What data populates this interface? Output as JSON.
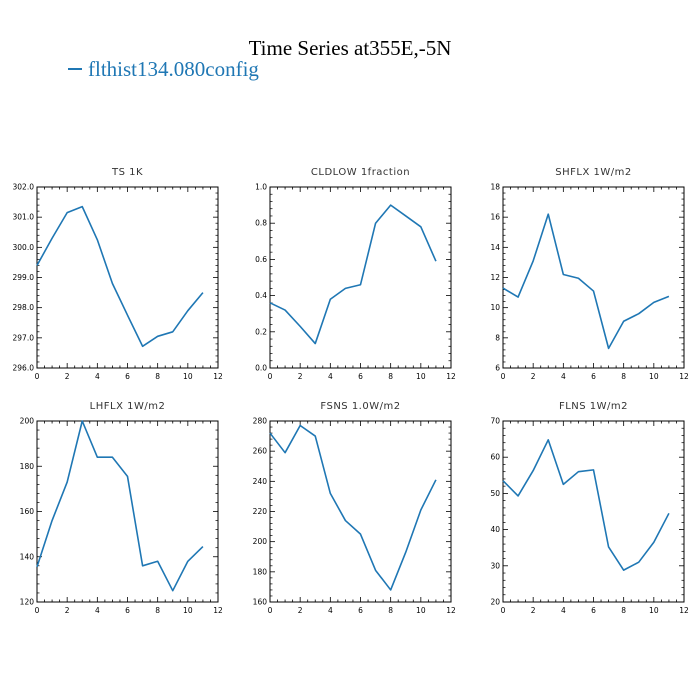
{
  "figure": {
    "title": "Time Series at355E,-5N",
    "legend_label": "flthist134.080config",
    "line_color": "#1f77b4"
  },
  "chart_data": [
    {
      "type": "line",
      "title": "TS   1K",
      "x": [
        0,
        1,
        2,
        3,
        4,
        5,
        6,
        7,
        8,
        9,
        10,
        11
      ],
      "series": [
        {
          "values": [
            299.4,
            300.3,
            301.15,
            301.35,
            300.25,
            298.8,
            297.75,
            296.72,
            297.05,
            297.2,
            297.9,
            298.5
          ]
        }
      ],
      "xlim": [
        0,
        12
      ],
      "ylim": [
        296,
        302
      ],
      "xticks": [
        0,
        2,
        4,
        6,
        8,
        10,
        12
      ],
      "yticks": [
        296.0,
        297.0,
        298.0,
        299.0,
        300.0,
        301.0,
        302.0
      ],
      "ytick_labels": [
        "296.0",
        "297.0",
        "298.0",
        "299.0",
        "300.0",
        "301.0",
        "302.0"
      ]
    },
    {
      "type": "line",
      "title": "CLDLOW   1fraction",
      "x": [
        0,
        1,
        2,
        3,
        4,
        5,
        6,
        7,
        8,
        9,
        10,
        11
      ],
      "series": [
        {
          "values": [
            0.36,
            0.32,
            0.23,
            0.135,
            0.38,
            0.44,
            0.46,
            0.8,
            0.9,
            0.84,
            0.78,
            0.59
          ]
        }
      ],
      "xlim": [
        0,
        12
      ],
      "ylim": [
        0,
        1
      ],
      "xticks": [
        0,
        2,
        4,
        6,
        8,
        10,
        12
      ],
      "yticks": [
        0.0,
        0.2,
        0.4,
        0.6,
        0.8,
        1.0
      ],
      "ytick_labels": [
        "0.0",
        "0.2",
        "0.4",
        "0.6",
        "0.8",
        "1.0"
      ]
    },
    {
      "type": "line",
      "title": "SHFLX   1W/m2",
      "x": [
        0,
        1,
        2,
        3,
        4,
        5,
        6,
        7,
        8,
        9,
        10,
        11
      ],
      "series": [
        {
          "values": [
            11.3,
            10.7,
            13.1,
            16.2,
            12.2,
            11.95,
            11.1,
            7.3,
            9.1,
            9.6,
            10.35,
            10.75
          ]
        }
      ],
      "xlim": [
        0,
        12
      ],
      "ylim": [
        6,
        18
      ],
      "xticks": [
        0,
        2,
        4,
        6,
        8,
        10,
        12
      ],
      "yticks": [
        6,
        8,
        10,
        12,
        14,
        16,
        18
      ],
      "ytick_labels": [
        "6",
        "8",
        "10",
        "12",
        "14",
        "16",
        "18"
      ]
    },
    {
      "type": "line",
      "title": "LHFLX   1W/m2",
      "x": [
        0,
        1,
        2,
        3,
        4,
        5,
        6,
        7,
        8,
        9,
        10,
        11
      ],
      "series": [
        {
          "values": [
            135.5,
            156,
            173,
            200,
            184,
            184,
            175.5,
            136,
            138,
            125,
            138,
            144.5
          ]
        }
      ],
      "xlim": [
        0,
        12
      ],
      "ylim": [
        120,
        200
      ],
      "xticks": [
        0,
        2,
        4,
        6,
        8,
        10,
        12
      ],
      "yticks": [
        120,
        140,
        160,
        180,
        200
      ],
      "ytick_labels": [
        "120",
        "140",
        "160",
        "180",
        "200"
      ]
    },
    {
      "type": "line",
      "title": "FSNS   1.0W/m2",
      "x": [
        0,
        1,
        2,
        3,
        4,
        5,
        6,
        7,
        8,
        9,
        10,
        11
      ],
      "series": [
        {
          "values": [
            272,
            259,
            277,
            270,
            232,
            214,
            205,
            181,
            168,
            193,
            221,
            241
          ]
        }
      ],
      "xlim": [
        0,
        12
      ],
      "ylim": [
        160,
        280
      ],
      "xticks": [
        0,
        2,
        4,
        6,
        8,
        10,
        12
      ],
      "yticks": [
        160,
        180,
        200,
        220,
        240,
        260,
        280
      ],
      "ytick_labels": [
        "160",
        "180",
        "200",
        "220",
        "240",
        "260",
        "280"
      ]
    },
    {
      "type": "line",
      "title": "FLNS   1W/m2",
      "x": [
        0,
        1,
        2,
        3,
        4,
        5,
        6,
        7,
        8,
        9,
        10,
        11
      ],
      "series": [
        {
          "values": [
            53.5,
            49.3,
            56.3,
            64.8,
            52.5,
            56,
            56.5,
            35.2,
            28.8,
            31,
            36.5,
            44.5
          ]
        }
      ],
      "xlim": [
        0,
        12
      ],
      "ylim": [
        20,
        70
      ],
      "xticks": [
        0,
        2,
        4,
        6,
        8,
        10,
        12
      ],
      "yticks": [
        20,
        30,
        40,
        50,
        60,
        70
      ],
      "ytick_labels": [
        "20",
        "30",
        "40",
        "50",
        "60",
        "70"
      ]
    }
  ]
}
